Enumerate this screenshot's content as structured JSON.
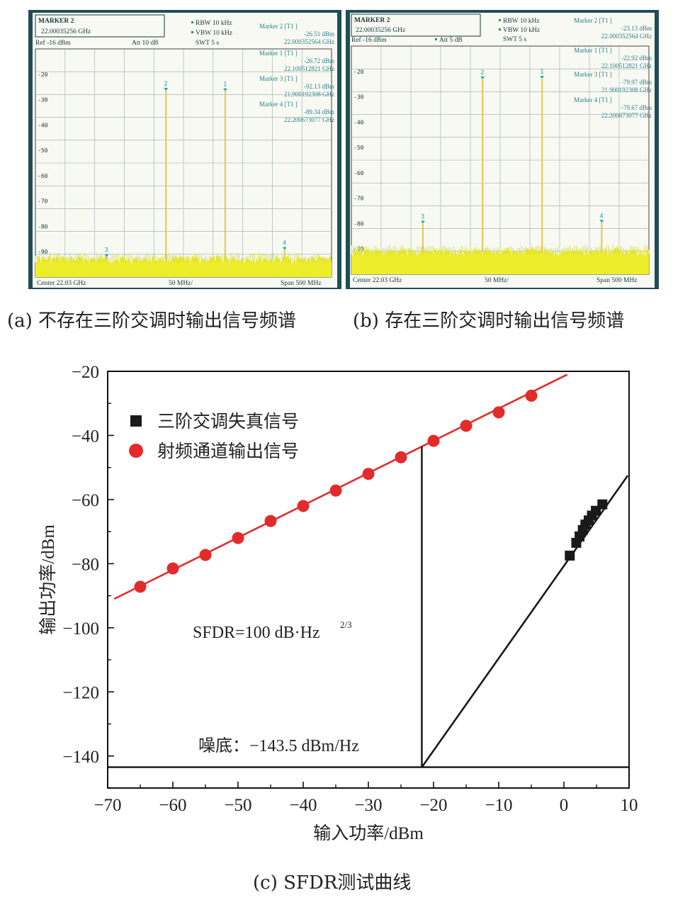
{
  "captions": {
    "a": "(a) 不存在三阶交调时输出信号频谱",
    "b": "(b) 存在三阶交调时输出信号频谱",
    "c": "(c) SFDR测试曲线"
  },
  "colors": {
    "sa_background": "#1f4e56",
    "sa_screen": "#f7f9f2",
    "sa_text": "#16383f",
    "sa_noise": "#eded2a",
    "sa_trace": "#e2c84a",
    "sa_marker": "#24a6a8",
    "plot_red": "#e32b2b",
    "plot_black": "#1a1a1a"
  },
  "spectrum_a": {
    "marker_title": "MARKER 2",
    "marker_freq": "22.00035256 GHz",
    "ref": "Ref -16 dBm",
    "att": "Att  10 dB",
    "rbw": "RBW 10 kHz",
    "vbw": "VBW 10 kHz",
    "swt": "SWT 5 s",
    "ref_level_dbm": -16,
    "y_ticks": [
      "-20",
      "-30",
      "-40",
      "-50",
      "-60",
      "-70",
      "-80",
      "-90"
    ],
    "markers": [
      {
        "label": "Marker 2 [T1 ]",
        "level": "-26.51 dBm",
        "freq": "22.000352564 GHz"
      },
      {
        "label": "Marker 1 [T1 ]",
        "level": "-26.72 dBm",
        "freq": "22.100512821 GHz"
      },
      {
        "label": "Marker 3 [T1 ]",
        "level": "-92.13 dBm",
        "freq": "21.900192308 GHz"
      },
      {
        "label": "Marker 4 [T1 ]",
        "level": "-89.34 dBm",
        "freq": "22.200673077 GHz"
      }
    ],
    "center": "Center  22.03 GHz",
    "div": "50 MHz/",
    "span": "Span  500 MHz",
    "peak_labels": [
      "2",
      "1",
      "3",
      "4"
    ]
  },
  "spectrum_b": {
    "marker_title": "MARKER 2",
    "marker_freq": "22.00035256 GHz",
    "ref": "Ref -16 dBm",
    "att": "Att  5 dB",
    "rbw": "RBW 10 kHz",
    "vbw": "VBW 10 kHz",
    "swt": "SWT 5 s",
    "ref_level_dbm": -16,
    "y_ticks": [
      "-20",
      "-30",
      "-40",
      "-50",
      "-60",
      "-70",
      "-80",
      "-90"
    ],
    "markers": [
      {
        "label": "Marker 2 [T1 ]",
        "level": "-23.13 dBm",
        "freq": "22.000352564 GHz"
      },
      {
        "label": "Marker 1 [T1 ]",
        "level": "-22.92 dBm",
        "freq": "22.100512821 GHz"
      },
      {
        "label": "Marker 3 [T1 ]",
        "level": "-79.97 dBm",
        "freq": "21.900192308 GHz"
      },
      {
        "label": "Marker 4 [T1 ]",
        "level": "-79.67 dBm",
        "freq": "22.200673077 GHz"
      }
    ],
    "center": "Center  22.03 GHz",
    "div": "50 MHz/",
    "span": "Span  500 MHz",
    "peak_labels": [
      "3",
      "2",
      "1",
      "4"
    ]
  },
  "chart_data": {
    "type": "scatter",
    "title": "",
    "xlabel": "输入功率/dBm",
    "ylabel": "输出功率/dBm",
    "xlim": [
      -70,
      10
    ],
    "ylim": [
      -150,
      -20
    ],
    "x_ticks": [
      -70,
      -60,
      -50,
      -40,
      -30,
      -20,
      -10,
      0,
      10
    ],
    "y_ticks": [
      -20,
      -40,
      -60,
      -80,
      -100,
      -120,
      -140
    ],
    "x_tick_labels": [
      "−70",
      "−60",
      "−50",
      "−40",
      "−30",
      "−20",
      "−10",
      "0",
      "10"
    ],
    "y_tick_labels": [
      "−20",
      "−40",
      "−60",
      "−80",
      "−100",
      "−120",
      "−140"
    ],
    "legend_position": "top-left",
    "series": [
      {
        "name": "三阶交调失真信号",
        "marker": "square",
        "color": "#1a1a1a",
        "x": [
          0.9,
          1.9,
          2.4,
          2.9,
          3.3,
          3.8,
          4.3,
          4.9,
          5.9
        ],
        "y": [
          -77.5,
          -73.5,
          -71.5,
          -69.5,
          -67.8,
          -66.5,
          -65.0,
          -63.5,
          -61.5
        ],
        "fit": {
          "x": [
            -21.8,
            9.8
          ],
          "y": [
            -143.5,
            -52.5
          ]
        }
      },
      {
        "name": "射频通道输出信号",
        "marker": "circle",
        "color": "#e32b2b",
        "x": [
          -65,
          -60,
          -55,
          -50,
          -45,
          -40,
          -35,
          -30,
          -25,
          -20,
          -15,
          -10,
          -5
        ],
        "y": [
          -87.2,
          -81.5,
          -77.3,
          -72.0,
          -66.7,
          -62.0,
          -57.2,
          -52.0,
          -46.8,
          -41.7,
          -37.0,
          -32.8,
          -27.6
        ],
        "fit": {
          "x": [
            -69,
            0.5
          ],
          "y": [
            -91.0,
            -21.0
          ]
        }
      }
    ],
    "reference_lines": {
      "noise_floor_y": -143.5,
      "intercept_x": -21.8,
      "intercept_top_y": -43.5
    },
    "annotations": {
      "sfdr_text": "SFDR=100 dB·Hz",
      "sfdr_sup": "2/3",
      "noise_text": "噪底：−143.5 dBm/Hz"
    }
  }
}
